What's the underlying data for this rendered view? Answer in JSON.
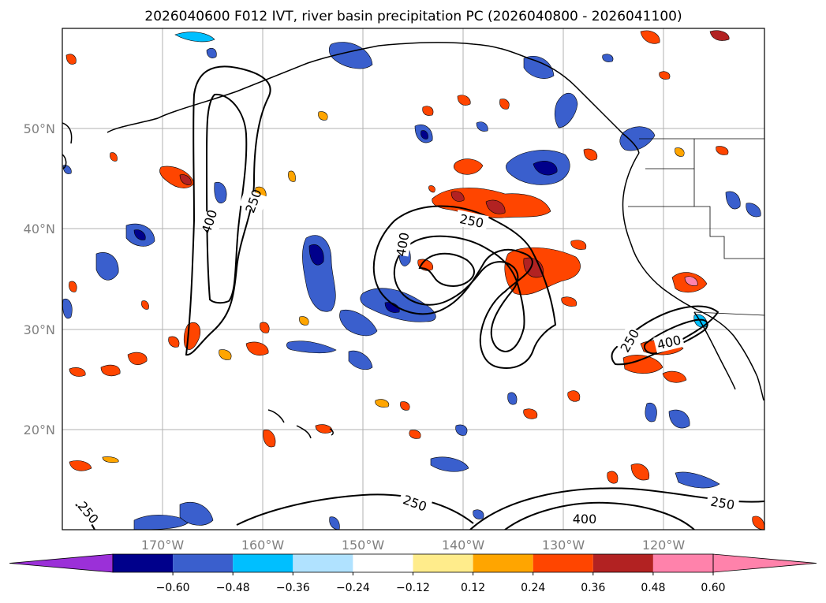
{
  "title": "2026040600 F012 IVT, river basin precipitation PC (2026040800 - 2026041100)",
  "lat_labels": [
    "50°N",
    "40°N",
    "30°N",
    "20°N"
  ],
  "lon_labels": [
    "170°W",
    "160°W",
    "150°W",
    "140°W",
    "130°W",
    "120°W"
  ],
  "colorbar": {
    "ticks": [
      "−0.60",
      "−0.48",
      "−0.36",
      "−0.24",
      "−0.12",
      "0.12",
      "0.24",
      "0.36",
      "0.48",
      "0.60"
    ],
    "colors": {
      "under": "#9b30d8",
      "bins": [
        "#00008b",
        "#3a5fcd",
        "#00bfff",
        "#b0e2ff",
        "#ffffff",
        "#ffec8b",
        "#ffa500",
        "#ff4500",
        "#b22222",
        "#ff82ab"
      ],
      "over": "#ff82ab"
    }
  },
  "contour_labels": [
    "250",
    "400",
    "250",
    "400",
    "250",
    "400",
    "250",
    "250",
    "400",
    "250"
  ]
}
